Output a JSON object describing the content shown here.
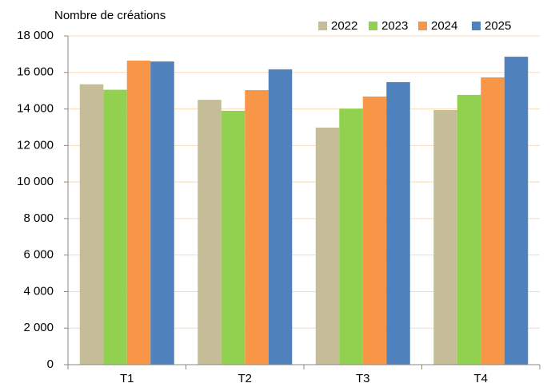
{
  "chart_data": {
    "type": "bar",
    "y_axis_label": "Nombre de créations",
    "categories": [
      "T1",
      "T2",
      "T3",
      "T4"
    ],
    "series": [
      {
        "name": "2022",
        "color": "#c4bd97",
        "values": [
          15350,
          14500,
          12980,
          13940
        ]
      },
      {
        "name": "2023",
        "color": "#92d050",
        "values": [
          15050,
          13900,
          14020,
          14770
        ]
      },
      {
        "name": "2024",
        "color": "#f79646",
        "values": [
          16650,
          15030,
          14680,
          15730
        ]
      },
      {
        "name": "2025",
        "color": "#4f81bd",
        "values": [
          16600,
          16170,
          15470,
          16860
        ]
      }
    ],
    "ylim": [
      0,
      18000
    ],
    "yticks": [
      0,
      {
        "value": 2000,
        "label": "2 000"
      },
      {
        "value": 4000,
        "label": "4 000"
      },
      {
        "value": 6000,
        "label": "6 000"
      },
      {
        "value": 8000,
        "label": "8 000"
      },
      {
        "value": 10000,
        "label": "10 000"
      },
      {
        "value": 12000,
        "label": "12 000"
      },
      {
        "value": 14000,
        "label": "14 000"
      },
      {
        "value": 16000,
        "label": "16 000"
      },
      {
        "value": 18000,
        "label": "18 000"
      }
    ],
    "grid": true,
    "legend": "top-right"
  }
}
